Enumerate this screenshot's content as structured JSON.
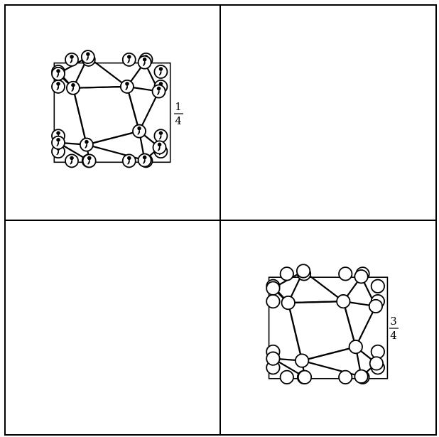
{
  "figure": {
    "description_free": true,
    "panels": [
      {
        "id": "top-left",
        "has_molecule": true,
        "atom_style": "comma",
        "fraction": {
          "numerator": "1",
          "denominator": "4"
        }
      },
      {
        "id": "top-right",
        "has_molecule": false
      },
      {
        "id": "bottom-left",
        "has_molecule": false
      },
      {
        "id": "bottom-right",
        "has_molecule": true,
        "atom_style": "plain",
        "fraction": {
          "numerator": "3",
          "denominator": "4"
        }
      }
    ],
    "colors": {
      "line": "#000000",
      "background": "#ffffff"
    }
  }
}
